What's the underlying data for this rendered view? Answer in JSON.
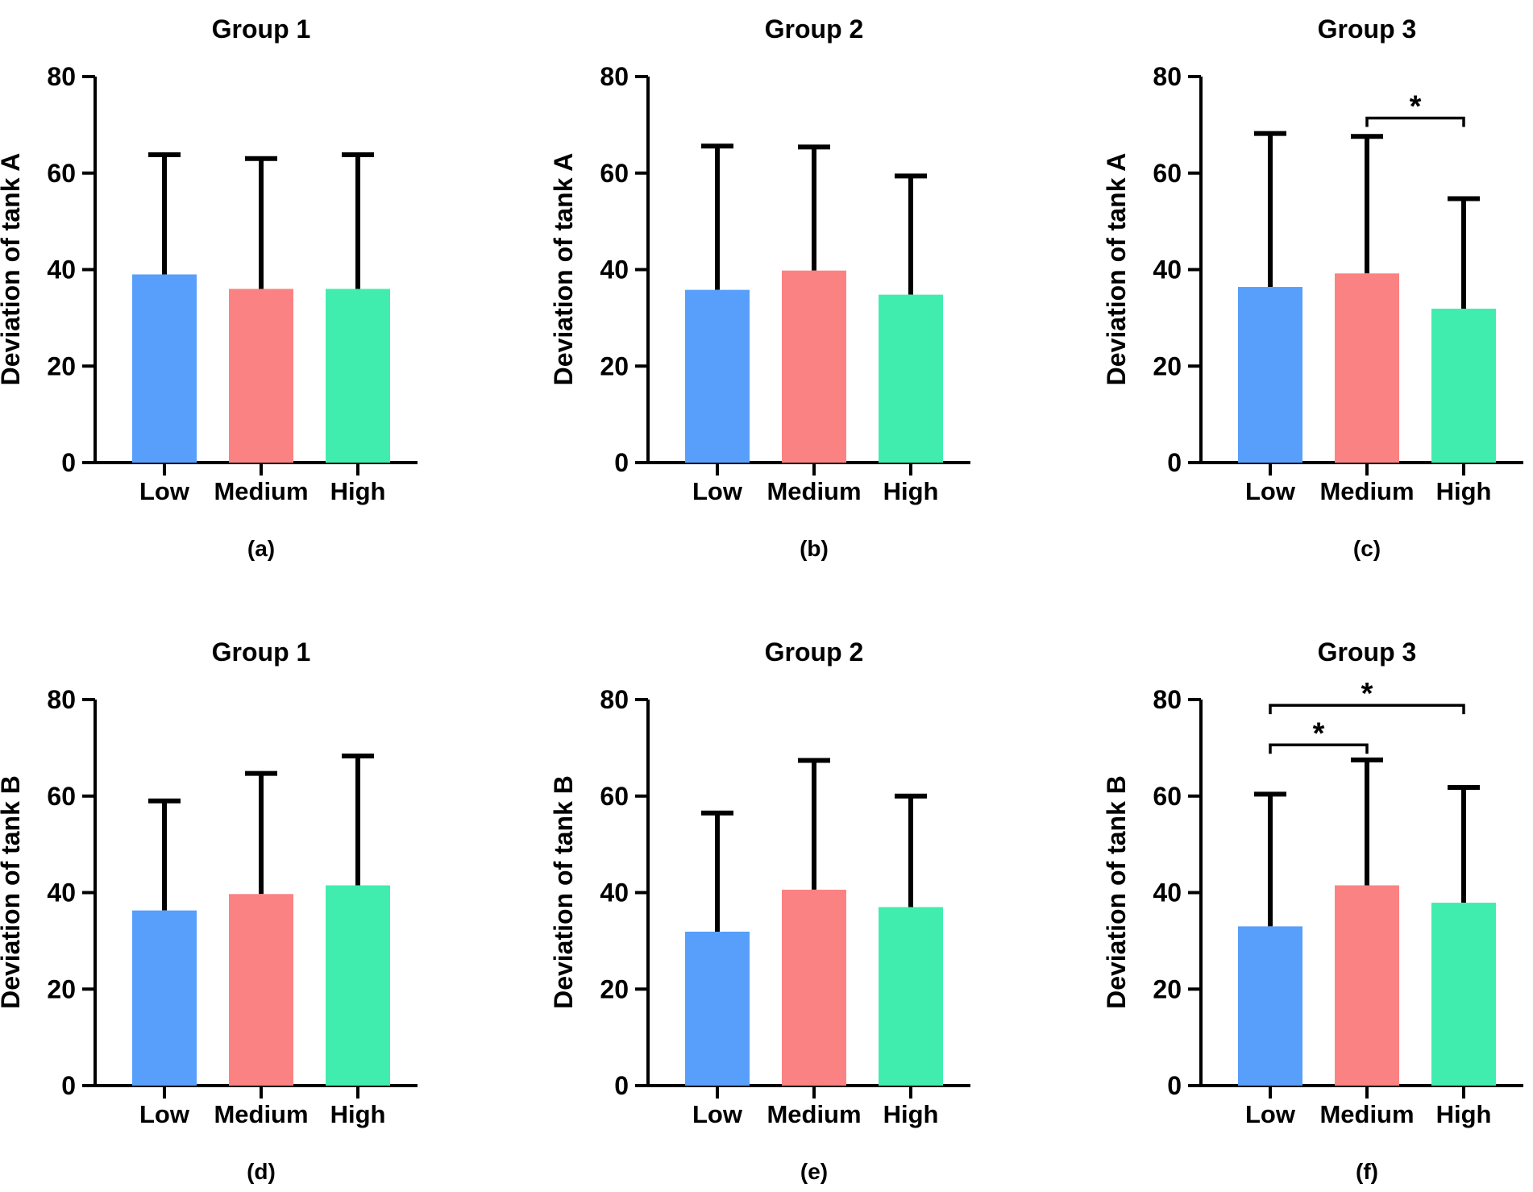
{
  "colors": {
    "Low": "#579ffa",
    "Medium": "#fb8282",
    "High": "#41edae",
    "axis": "#000000"
  },
  "chart_data": [
    {
      "panel": "(a)",
      "type": "bar",
      "title": "Group 1",
      "ylabel": "Deviation of tank A",
      "xlabel": "",
      "categories": [
        "Low",
        "Medium",
        "High"
      ],
      "values": [
        39,
        36,
        36
      ],
      "errors": [
        24.8,
        27,
        27.8
      ],
      "ylim": [
        0,
        80
      ],
      "yticks": [
        "0",
        "20",
        "40",
        "60",
        "80"
      ],
      "significance": []
    },
    {
      "panel": "(b)",
      "type": "bar",
      "title": "Group 2",
      "ylabel": "Deviation of tank A",
      "xlabel": "",
      "categories": [
        "Low",
        "Medium",
        "High"
      ],
      "values": [
        35.8,
        39.8,
        34.8
      ],
      "errors": [
        29.8,
        25.6,
        24.6
      ],
      "ylim": [
        0,
        80
      ],
      "yticks": [
        "0",
        "20",
        "40",
        "60",
        "80"
      ],
      "significance": []
    },
    {
      "panel": "(c)",
      "type": "bar",
      "title": "Group 3",
      "ylabel": "Deviation of tank A",
      "xlabel": "",
      "categories": [
        "Low",
        "Medium",
        "High"
      ],
      "values": [
        36.4,
        39.2,
        31.9
      ],
      "errors": [
        31.8,
        28.4,
        22.8
      ],
      "ylim": [
        0,
        80
      ],
      "yticks": [
        "0",
        "20",
        "40",
        "60",
        "80"
      ],
      "significance": [
        {
          "from": 1,
          "to": 2,
          "y": 71.4,
          "label": "*"
        }
      ]
    },
    {
      "panel": "(d)",
      "type": "bar",
      "title": "Group 1",
      "ylabel": "Deviation of tank B",
      "xlabel": "",
      "categories": [
        "Low",
        "Medium",
        "High"
      ],
      "values": [
        36.3,
        39.7,
        41.5
      ],
      "errors": [
        22.7,
        25,
        26.8
      ],
      "ylim": [
        0,
        80
      ],
      "yticks": [
        "0",
        "20",
        "40",
        "60",
        "80"
      ],
      "significance": []
    },
    {
      "panel": "(e)",
      "type": "bar",
      "title": "Group 2",
      "ylabel": "Deviation of tank B",
      "xlabel": "",
      "categories": [
        "Low",
        "Medium",
        "High"
      ],
      "values": [
        31.9,
        40.6,
        37
      ],
      "errors": [
        24.6,
        26.8,
        23
      ],
      "ylim": [
        0,
        80
      ],
      "yticks": [
        "0",
        "20",
        "40",
        "60",
        "80"
      ],
      "significance": []
    },
    {
      "panel": "(f)",
      "type": "bar",
      "title": "Group 3",
      "ylabel": "Deviation of tank B",
      "xlabel": "",
      "categories": [
        "Low",
        "Medium",
        "High"
      ],
      "values": [
        33,
        41.5,
        37.9
      ],
      "errors": [
        27.4,
        26,
        23.9
      ],
      "ylim": [
        0,
        80
      ],
      "yticks": [
        "0",
        "20",
        "40",
        "60",
        "80"
      ],
      "significance": [
        {
          "from": 0,
          "to": 2,
          "y": 78.8,
          "label": "*"
        },
        {
          "from": 0,
          "to": 1,
          "y": 70.6,
          "label": "*"
        }
      ]
    }
  ]
}
